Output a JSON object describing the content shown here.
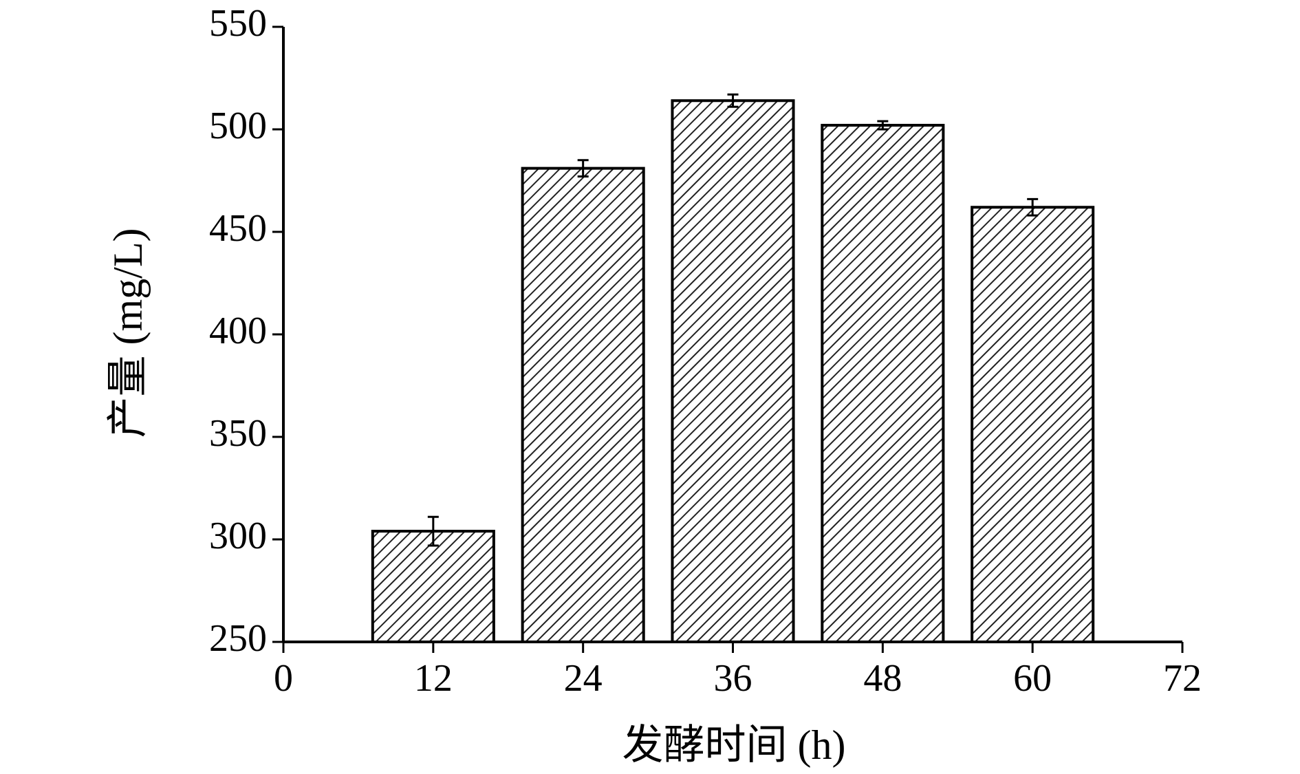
{
  "chart_data": {
    "type": "bar",
    "x_label": "发酵时间 (h)",
    "y_label": "产量 (mg/L)",
    "x": [
      12,
      24,
      36,
      48,
      60
    ],
    "values": [
      304,
      481,
      514,
      502,
      462
    ],
    "errors": [
      7,
      4,
      3,
      2,
      4
    ],
    "color": "#000000",
    "xlim": [
      0,
      72
    ],
    "xticks": [
      0,
      12,
      24,
      36,
      48,
      60,
      72
    ],
    "ylim": [
      250,
      550
    ],
    "yticks": [
      250,
      300,
      350,
      400,
      450,
      500,
      550
    ],
    "grid": false
  }
}
